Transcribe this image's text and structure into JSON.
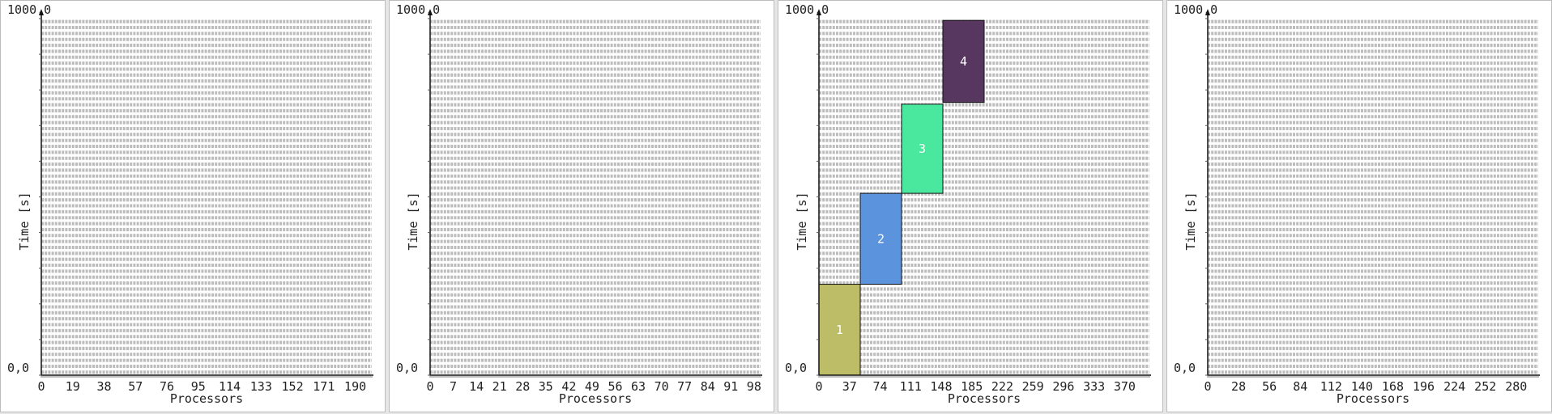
{
  "chart_data": [
    {
      "type": "gantt",
      "xlabel": "Processors",
      "ylabel": "Time [s]",
      "ymax_label": "1000,0",
      "ymin_label": "0,0",
      "ylim": [
        0,
        1000
      ],
      "xlim": [
        0,
        200
      ],
      "x_ticks": [
        0,
        19,
        38,
        57,
        76,
        95,
        114,
        133,
        152,
        171,
        190
      ],
      "jobs": []
    },
    {
      "type": "gantt",
      "xlabel": "Processors",
      "ylabel": "Time [s]",
      "ymax_label": "1000,0",
      "ymin_label": "0,0",
      "ylim": [
        0,
        1000
      ],
      "xlim": [
        0,
        100
      ],
      "x_ticks": [
        0,
        7,
        14,
        21,
        28,
        35,
        42,
        49,
        56,
        63,
        70,
        77,
        84,
        91,
        98
      ],
      "jobs": []
    },
    {
      "type": "gantt",
      "xlabel": "Processors",
      "ylabel": "Time [s]",
      "ymax_label": "1000,0",
      "ymin_label": "0,0",
      "ylim": [
        0,
        1000
      ],
      "xlim": [
        0,
        400
      ],
      "x_ticks": [
        0,
        37,
        74,
        111,
        148,
        185,
        222,
        259,
        296,
        333,
        370
      ],
      "jobs": [
        {
          "label": "1",
          "proc_start": 0,
          "proc_end": 50,
          "time_start": 0,
          "time_end": 255,
          "color": "#bdbd68"
        },
        {
          "label": "2",
          "proc_start": 50,
          "proc_end": 100,
          "time_start": 255,
          "time_end": 510,
          "color": "#5b93dc"
        },
        {
          "label": "3",
          "proc_start": 100,
          "proc_end": 150,
          "time_start": 510,
          "time_end": 760,
          "color": "#4ae89e"
        },
        {
          "label": "4",
          "proc_start": 150,
          "proc_end": 200,
          "time_start": 765,
          "time_end": 995,
          "color": "#57365f"
        }
      ]
    },
    {
      "type": "gantt",
      "xlabel": "Processors",
      "ylabel": "Time [s]",
      "ymax_label": "1000,0",
      "ymin_label": "0,0",
      "ylim": [
        0,
        1000
      ],
      "xlim": [
        0,
        300
      ],
      "x_ticks": [
        0,
        28,
        56,
        84,
        112,
        140,
        168,
        196,
        224,
        252,
        280
      ],
      "jobs": []
    }
  ]
}
